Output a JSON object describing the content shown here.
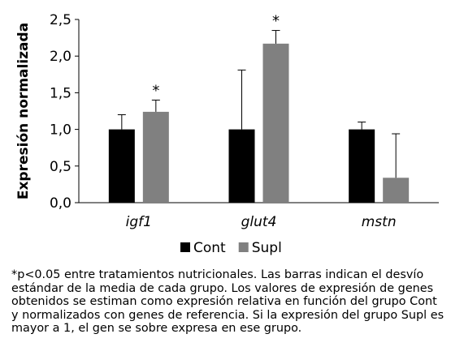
{
  "chart_data": {
    "type": "bar",
    "ylabel": "Expresión normalizada",
    "categories": [
      "igf1",
      "glut4",
      "mstn"
    ],
    "ylim": [
      0,
      2.5
    ],
    "yticks": [
      "0,0",
      "0,5",
      "1,0",
      "1,5",
      "2,0",
      "2,5"
    ],
    "grid": false,
    "legend_position": "bottom",
    "series": [
      {
        "name": "Cont",
        "color": "#000000",
        "values": [
          1.0,
          1.0,
          1.0
        ],
        "errors": [
          0.2,
          0.81,
          0.1
        ]
      },
      {
        "name": "Supl",
        "color": "#808080",
        "values": [
          1.24,
          2.17,
          0.34
        ],
        "errors": [
          0.16,
          0.18,
          0.6
        ]
      }
    ],
    "annotations": [
      {
        "category": "igf1",
        "series": "Supl",
        "text": "*"
      },
      {
        "category": "glut4",
        "series": "Supl",
        "text": "*"
      }
    ]
  },
  "footnote": "*p<0.05 entre tratamientos nutricionales. Las barras indican el desvío estándar de la media de cada grupo. Los valores de expresión de genes obtenidos se estiman como expresión relativa en función del grupo Cont y normalizados con genes de referencia. Si la expresión del grupo Supl es mayor a 1, el gen se sobre expresa en ese grupo."
}
